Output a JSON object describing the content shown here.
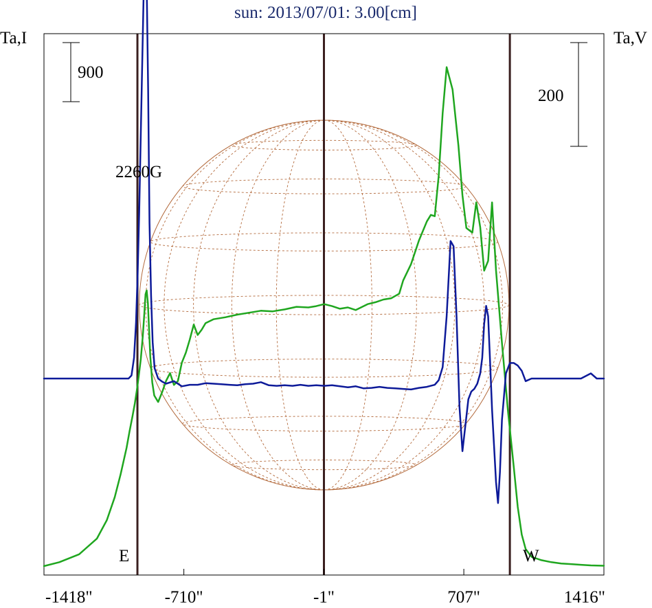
{
  "chart_data": {
    "type": "line",
    "title": "sun: 2013/07/01: 3.00[cm]",
    "left_axis_label": "Ta,I",
    "right_axis_label": "Ta,V",
    "x_ticks": [
      {
        "value": -1418,
        "label": "-1418\""
      },
      {
        "value": -710,
        "label": "-710\""
      },
      {
        "value": -1,
        "label": "-1\""
      },
      {
        "value": 707,
        "label": "707\""
      },
      {
        "value": 1416,
        "label": "1416\""
      }
    ],
    "xlim": [
      -1418,
      1416
    ],
    "scale_bars": [
      {
        "axis": "left",
        "value": 900,
        "label": "900"
      },
      {
        "axis": "right",
        "value": 200,
        "label": "200"
      }
    ],
    "annotations": [
      {
        "text": "2260G"
      },
      {
        "text": "E"
      },
      {
        "text": "W"
      }
    ],
    "vertical_markers": [
      -945,
      -1,
      940
    ],
    "colors": {
      "title": "#1a2a6c",
      "intensity": "#1fa61f",
      "polarization": "#0d1a99",
      "markers": "#3a1f1f",
      "disk": "#b36a3c"
    },
    "series": [
      {
        "name": "Ta,I",
        "x": [
          -1418,
          -1340,
          -1240,
          -1150,
          -1100,
          -1060,
          -1030,
          -1000,
          -985,
          -970,
          -958,
          -948,
          -938,
          -928,
          -918,
          -910,
          -904,
          -898,
          -892,
          -886,
          -880,
          -870,
          -860,
          -840,
          -820,
          -800,
          -780,
          -760,
          -740,
          -720,
          -700,
          -680,
          -660,
          -640,
          -620,
          -600,
          -560,
          -500,
          -440,
          -380,
          -320,
          -260,
          -200,
          -140,
          -80,
          -40,
          0,
          40,
          80,
          120,
          160,
          220,
          260,
          300,
          340,
          380,
          400,
          440,
          480,
          520,
          540,
          560,
          580,
          600,
          620,
          650,
          680,
          700,
          720,
          750,
          770,
          790,
          810,
          830,
          850,
          870,
          900,
          930,
          960,
          980,
          1000,
          1020,
          1050,
          1100,
          1150,
          1200,
          1250,
          1300,
          1350,
          1416
        ],
        "values": [
          0,
          60,
          180,
          420,
          700,
          1050,
          1400,
          1800,
          2050,
          2280,
          2480,
          2680,
          2900,
          3150,
          3500,
          3850,
          4140,
          4200,
          4000,
          3600,
          3200,
          2800,
          2600,
          2500,
          2650,
          2820,
          2940,
          2760,
          2820,
          3100,
          3250,
          3450,
          3680,
          3520,
          3600,
          3700,
          3760,
          3790,
          3830,
          3860,
          3890,
          3880,
          3910,
          3950,
          3940,
          3960,
          3990,
          3960,
          3920,
          3940,
          3900,
          3990,
          4020,
          4060,
          4080,
          4150,
          4350,
          4600,
          4960,
          5250,
          5350,
          5330,
          5950,
          6900,
          7600,
          7260,
          6400,
          5650,
          5150,
          5080,
          5540,
          5160,
          4500,
          4650,
          5540,
          4500,
          3400,
          2380,
          1500,
          900,
          480,
          260,
          140,
          90,
          60,
          40,
          30,
          20,
          10,
          5
        ]
      },
      {
        "name": "Ta,V",
        "x": [
          -1418,
          -1100,
          -1010,
          -990,
          -975,
          -962,
          -952,
          -944,
          -936,
          -928,
          -920,
          -912,
          -905,
          -898,
          -891,
          -884,
          -876,
          -868,
          -858,
          -840,
          -820,
          -800,
          -760,
          -720,
          -680,
          -640,
          -600,
          -560,
          -520,
          -480,
          -440,
          -400,
          -360,
          -320,
          -280,
          -240,
          -200,
          -160,
          -120,
          -80,
          -40,
          0,
          40,
          80,
          120,
          160,
          200,
          240,
          280,
          320,
          360,
          400,
          440,
          480,
          520,
          560,
          580,
          600,
          620,
          640,
          655,
          670,
          685,
          700,
          715,
          730,
          745,
          760,
          775,
          790,
          800,
          810,
          820,
          830,
          840,
          850,
          860,
          870,
          880,
          890,
          900,
          920,
          940,
          960,
          980,
          1000,
          1020,
          1050,
          1100,
          1150,
          1200,
          1250,
          1300,
          1350,
          1380,
          1416
        ],
        "values": [
          0,
          0,
          0,
          0,
          6,
          40,
          108,
          200,
          320,
          470,
          620,
          770,
          845,
          760,
          560,
          300,
          160,
          70,
          20,
          0,
          -6,
          -10,
          -5,
          -15,
          -12,
          -12,
          -9,
          -10,
          -11,
          -12,
          -13,
          -11,
          -10,
          -7,
          -13,
          -14,
          -13,
          -14,
          -12,
          -14,
          -13,
          -14,
          -13,
          -15,
          -17,
          -15,
          -19,
          -18,
          -16,
          -18,
          -19,
          -20,
          -21,
          -18,
          -16,
          -12,
          -3,
          22,
          120,
          265,
          255,
          120,
          -55,
          -140,
          -90,
          -40,
          -25,
          -20,
          -10,
          10,
          40,
          105,
          140,
          120,
          30,
          -60,
          -130,
          -200,
          -240,
          -180,
          -80,
          10,
          30,
          30,
          25,
          15,
          -5,
          0,
          0,
          0,
          0,
          0,
          0,
          10,
          0,
          0
        ]
      }
    ]
  }
}
